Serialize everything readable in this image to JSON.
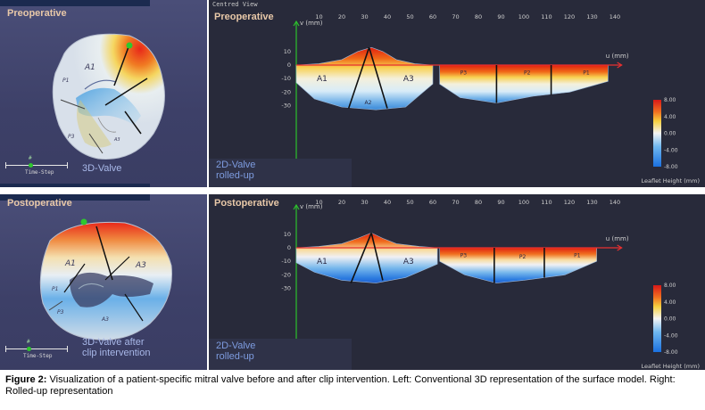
{
  "top_left": {
    "title": "Preoperative",
    "view_label": "3D-Valve",
    "time_step_label": "Time-Step",
    "time_marker": "#"
  },
  "bottom_left": {
    "title": "Postoperative",
    "view_label_line1": "3D-Valve after",
    "view_label_line2": "clip intervention",
    "time_step_label": "Time-Step",
    "time_marker": "#"
  },
  "top_right": {
    "window_title": "Centred View",
    "title": "Preoperative",
    "label_line1": "2D-Valve",
    "label_line2": "rolled-up",
    "axis_v": "v (mm)",
    "axis_u": "u (mm)",
    "x_ticks": [
      "10",
      "20",
      "30",
      "40",
      "50",
      "60",
      "70",
      "80",
      "90",
      "100",
      "110",
      "120",
      "130",
      "140"
    ],
    "y_ticks": [
      "10",
      "0",
      "-10",
      "-20",
      "-30"
    ],
    "segments": [
      "A1",
      "A2",
      "A3",
      "P3",
      "P2",
      "P1"
    ],
    "colorbar_ticks": [
      "8.00",
      "4.00",
      "0.00",
      "-4.00",
      "-8.00"
    ],
    "colorbar_title": "Leaflet Height (mm)"
  },
  "bottom_right": {
    "title": "Postoperative",
    "label_line1": "2D-Valve",
    "label_line2": "rolled-up",
    "axis_v": "v (mm)",
    "axis_u": "u (mm)",
    "x_ticks": [
      "10",
      "20",
      "30",
      "40",
      "50",
      "60",
      "70",
      "80",
      "90",
      "100",
      "110",
      "120",
      "130",
      "140"
    ],
    "y_ticks": [
      "10",
      "0",
      "-10",
      "-20",
      "-30"
    ],
    "segments": [
      "A1",
      "A3",
      "P3",
      "P2",
      "P1"
    ],
    "colorbar_ticks": [
      "8.00",
      "4.00",
      "0.00",
      "-4.00",
      "-8.00"
    ],
    "colorbar_title": "Leaflet Height (mm)"
  },
  "valve_labels_pre": [
    "A1",
    "P1",
    "P3",
    "A3"
  ],
  "valve_labels_post": [
    "A1",
    "A3",
    "P1",
    "P3",
    "A3"
  ],
  "caption": {
    "bold": "Figure 2:",
    "text": " Visualization of a patient-specific mitral valve before and after clip intervention. Left: Conventional 3D representation of the surface model. Right: Rolled-up representation"
  }
}
